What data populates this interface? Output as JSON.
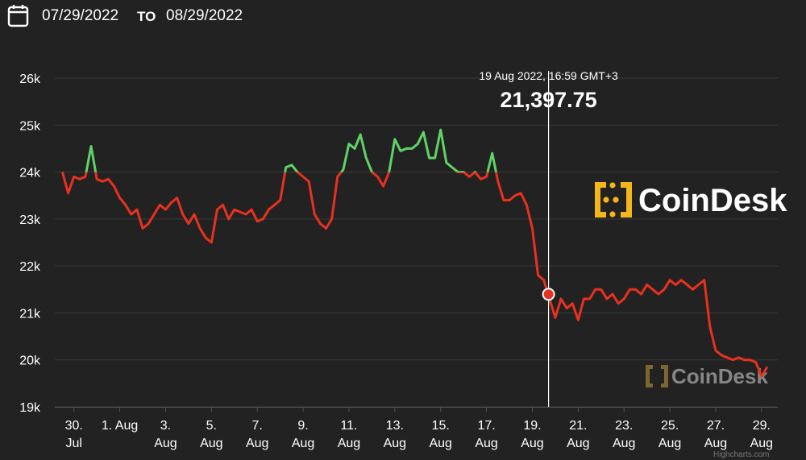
{
  "header": {
    "start_date": "07/29/2022",
    "separator": "TO",
    "end_date": "08/29/2022"
  },
  "logo": "CoinDesk",
  "watermark": "CoinDesk",
  "credits": "Highcharts.com",
  "chart_data": {
    "type": "line",
    "color": "#e8311f",
    "color_above_start": "#5fd366",
    "grid": true,
    "x": [
      "2022-07-29T12:00",
      "2022-07-29T18:00",
      "2022-07-30T00:00",
      "2022-07-30T06:00",
      "2022-07-30T12:00",
      "2022-07-30T18:00",
      "2022-07-31T00:00",
      "2022-07-31T06:00",
      "2022-07-31T12:00",
      "2022-07-31T18:00",
      "2022-08-01T00:00",
      "2022-08-01T06:00",
      "2022-08-01T12:00",
      "2022-08-01T18:00",
      "2022-08-02T00:00",
      "2022-08-02T06:00",
      "2022-08-02T12:00",
      "2022-08-02T18:00",
      "2022-08-03T00:00",
      "2022-08-03T06:00",
      "2022-08-03T12:00",
      "2022-08-03T18:00",
      "2022-08-04T00:00",
      "2022-08-04T06:00",
      "2022-08-04T12:00",
      "2022-08-04T18:00",
      "2022-08-05T00:00",
      "2022-08-05T06:00",
      "2022-08-05T12:00",
      "2022-08-05T18:00",
      "2022-08-06T00:00",
      "2022-08-06T06:00",
      "2022-08-06T12:00",
      "2022-08-06T18:00",
      "2022-08-07T00:00",
      "2022-08-07T06:00",
      "2022-08-07T12:00",
      "2022-08-07T18:00",
      "2022-08-08T00:00",
      "2022-08-08T06:00",
      "2022-08-08T12:00",
      "2022-08-08T18:00",
      "2022-08-09T00:00",
      "2022-08-09T06:00",
      "2022-08-09T12:00",
      "2022-08-09T18:00",
      "2022-08-10T00:00",
      "2022-08-10T06:00",
      "2022-08-10T12:00",
      "2022-08-10T18:00",
      "2022-08-11T00:00",
      "2022-08-11T06:00",
      "2022-08-11T12:00",
      "2022-08-11T18:00",
      "2022-08-12T00:00",
      "2022-08-12T06:00",
      "2022-08-12T12:00",
      "2022-08-12T18:00",
      "2022-08-13T00:00",
      "2022-08-13T06:00",
      "2022-08-13T12:00",
      "2022-08-13T18:00",
      "2022-08-14T00:00",
      "2022-08-14T06:00",
      "2022-08-14T12:00",
      "2022-08-14T18:00",
      "2022-08-15T00:00",
      "2022-08-15T06:00",
      "2022-08-15T12:00",
      "2022-08-15T18:00",
      "2022-08-16T00:00",
      "2022-08-16T06:00",
      "2022-08-16T12:00",
      "2022-08-16T18:00",
      "2022-08-17T00:00",
      "2022-08-17T06:00",
      "2022-08-17T12:00",
      "2022-08-17T18:00",
      "2022-08-18T00:00",
      "2022-08-18T06:00",
      "2022-08-18T12:00",
      "2022-08-18T18:00",
      "2022-08-19T00:00",
      "2022-08-19T06:00",
      "2022-08-19T12:00",
      "2022-08-19T18:00",
      "2022-08-20T00:00",
      "2022-08-20T06:00",
      "2022-08-20T12:00",
      "2022-08-20T18:00",
      "2022-08-21T00:00",
      "2022-08-21T06:00",
      "2022-08-21T12:00",
      "2022-08-21T18:00",
      "2022-08-22T00:00",
      "2022-08-22T06:00",
      "2022-08-22T12:00",
      "2022-08-22T18:00",
      "2022-08-23T00:00",
      "2022-08-23T06:00",
      "2022-08-23T12:00",
      "2022-08-23T18:00",
      "2022-08-24T00:00",
      "2022-08-24T06:00",
      "2022-08-24T12:00",
      "2022-08-24T18:00",
      "2022-08-25T00:00",
      "2022-08-25T06:00",
      "2022-08-25T12:00",
      "2022-08-25T18:00",
      "2022-08-26T00:00",
      "2022-08-26T06:00",
      "2022-08-26T12:00",
      "2022-08-26T18:00",
      "2022-08-27T00:00",
      "2022-08-27T06:00",
      "2022-08-27T12:00",
      "2022-08-27T18:00",
      "2022-08-28T00:00",
      "2022-08-28T06:00",
      "2022-08-28T12:00",
      "2022-08-28T18:00",
      "2022-08-29T00:00",
      "2022-08-29T06:00"
    ],
    "values": [
      24000,
      23550,
      23900,
      23850,
      23900,
      24550,
      23850,
      23800,
      23850,
      23700,
      23450,
      23300,
      23100,
      23200,
      22800,
      22900,
      23100,
      23300,
      23200,
      23350,
      23450,
      23100,
      22900,
      23100,
      22800,
      22600,
      22500,
      23200,
      23300,
      23000,
      23200,
      23150,
      23100,
      23200,
      22950,
      23000,
      23200,
      23300,
      23400,
      24100,
      24150,
      24000,
      23900,
      23800,
      23100,
      22900,
      22800,
      23000,
      23900,
      24050,
      24600,
      24500,
      24800,
      24300,
      24000,
      23900,
      23700,
      24000,
      24700,
      24450,
      24500,
      24500,
      24600,
      24850,
      24300,
      24300,
      24900,
      24200,
      24100,
      24000,
      24000,
      23900,
      24000,
      23850,
      23900,
      24400,
      23800,
      23400,
      23400,
      23500,
      23550,
      23300,
      22800,
      21800,
      21700,
      21300,
      20900,
      21300,
      21100,
      21200,
      20850,
      21300,
      21300,
      21500,
      21500,
      21300,
      21400,
      21200,
      21300,
      21500,
      21500,
      21400,
      21600,
      21500,
      21400,
      21500,
      21700,
      21600,
      21700,
      21600,
      21500,
      21600,
      21700,
      20700,
      20200,
      20100,
      20050,
      20000,
      20050,
      20000,
      20000,
      19950,
      19650,
      19850
    ],
    "xlim": [
      "2022-07-29T04:00",
      "2022-08-29T17:00"
    ],
    "xticks": [
      {
        "value": "2022-07-30T00:00",
        "label": "30.\nJul"
      },
      {
        "value": "2022-08-01T00:00",
        "label": "1. Aug"
      },
      {
        "value": "2022-08-03T00:00",
        "label": "3.\nAug"
      },
      {
        "value": "2022-08-05T00:00",
        "label": "5.\nAug"
      },
      {
        "value": "2022-08-07T00:00",
        "label": "7.\nAug"
      },
      {
        "value": "2022-08-09T00:00",
        "label": "9.\nAug"
      },
      {
        "value": "2022-08-11T00:00",
        "label": "11.\nAug"
      },
      {
        "value": "2022-08-13T00:00",
        "label": "13.\nAug"
      },
      {
        "value": "2022-08-15T00:00",
        "label": "15.\nAug"
      },
      {
        "value": "2022-08-17T00:00",
        "label": "17.\nAug"
      },
      {
        "value": "2022-08-19T00:00",
        "label": "19.\nAug"
      },
      {
        "value": "2022-08-21T00:00",
        "label": "21.\nAug"
      },
      {
        "value": "2022-08-23T00:00",
        "label": "23.\nAug"
      },
      {
        "value": "2022-08-25T00:00",
        "label": "25.\nAug"
      },
      {
        "value": "2022-08-27T00:00",
        "label": "27.\nAug"
      },
      {
        "value": "2022-08-29T00:00",
        "label": "29.\nAug"
      }
    ],
    "ylim": [
      19000,
      26000
    ],
    "yticks": [
      {
        "value": 19000,
        "label": "19k"
      },
      {
        "value": 20000,
        "label": "20k"
      },
      {
        "value": 21000,
        "label": "21k"
      },
      {
        "value": 22000,
        "label": "22k"
      },
      {
        "value": 23000,
        "label": "23k"
      },
      {
        "value": 24000,
        "label": "24k"
      },
      {
        "value": 25000,
        "label": "25k"
      },
      {
        "value": 26000,
        "label": "26k"
      }
    ],
    "tooltip": {
      "x": "2022-08-19T16:59",
      "date_label": "19 Aug 2022, 16:59 GMT+3",
      "value": 21397.75,
      "value_label": "21,397.75"
    }
  }
}
